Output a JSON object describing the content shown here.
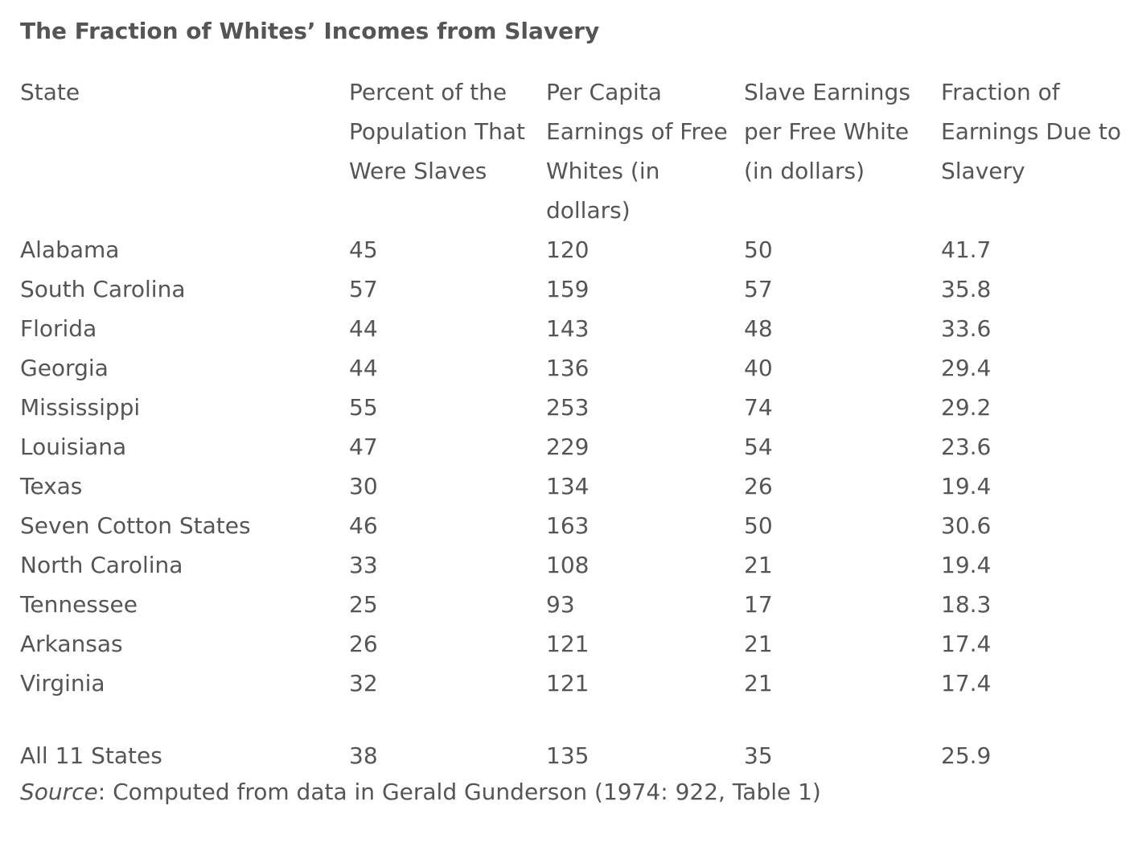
{
  "caption": "The Fraction of Whites’ Incomes from Slavery",
  "columns": [
    "State",
    "Percent of the Population That Were Slaves",
    "Per Capita Earnings of Free Whites (in dollars)",
    "Slave Earnings per Free White (in dollars)",
    "Fraction of Earnings Due to Slavery"
  ],
  "rows": [
    [
      "Alabama",
      "45",
      "120",
      "50",
      "41.7"
    ],
    [
      "South Carolina",
      "57",
      "159",
      "57",
      "35.8"
    ],
    [
      "Florida",
      "44",
      "143",
      "48",
      "33.6"
    ],
    [
      "Georgia",
      "44",
      "136",
      "40",
      "29.4"
    ],
    [
      "Mississippi",
      "55",
      "253",
      "74",
      "29.2"
    ],
    [
      "Louisiana",
      "47",
      "229",
      "54",
      "23.6"
    ],
    [
      "Texas",
      "30",
      "134",
      "26",
      "19.4"
    ],
    [
      "Seven Cotton States",
      "46",
      "163",
      "50",
      "30.6"
    ],
    [
      "North Carolina",
      "33",
      "108",
      "21",
      "19.4"
    ],
    [
      "Tennessee",
      "25",
      "93",
      "17",
      "18.3"
    ],
    [
      "Arkansas",
      "26",
      "121",
      "21",
      "17.4"
    ],
    [
      "Virginia",
      "32",
      "121",
      "21",
      "17.4"
    ]
  ],
  "total_row": [
    "All 11 States",
    "38",
    "135",
    "35",
    "25.9"
  ],
  "source": {
    "label": "Source",
    "text": ": Computed from data in Gerald Gunderson (1974: 922, Table 1)"
  }
}
